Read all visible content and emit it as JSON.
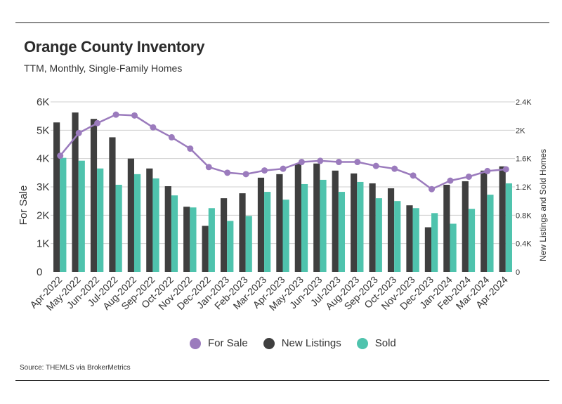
{
  "header": {
    "title": "Orange County Inventory",
    "subtitle": "TTM, Monthly, Single-Family Homes"
  },
  "source": "Source:  THEMLS via BrokerMetrics",
  "colors": {
    "for_sale": "#9b7bbd",
    "new_listings": "#3f3f3f",
    "sold": "#4fc3ad",
    "grid": "#cfcfcf",
    "rule": "#222222"
  },
  "chart_data": {
    "type": "bar",
    "title": "Orange County Inventory",
    "subtitle": "TTM, Monthly, Single-Family Homes",
    "categories": [
      "Apr-2022",
      "May-2022",
      "Jun-2022",
      "Jul-2022",
      "Aug-2022",
      "Sep-2022",
      "Oct-2022",
      "Nov-2022",
      "Dec-2022",
      "Jan-2023",
      "Feb-2023",
      "Mar-2023",
      "Apr-2023",
      "May-2023",
      "Jun-2023",
      "Jul-2023",
      "Aug-2023",
      "Sep-2023",
      "Oct-2023",
      "Nov-2023",
      "Dec-2023",
      "Jan-2024",
      "Feb-2024",
      "Mar-2024",
      "Apr-2024"
    ],
    "y_left": {
      "label": "For Sale",
      "ticks": [
        "0",
        "1K",
        "2K",
        "3K",
        "4K",
        "5K",
        "6K"
      ],
      "ylim": [
        0,
        6000
      ]
    },
    "y_right": {
      "label": "New Listings and Sold Homes",
      "ticks": [
        "0",
        "0.4K",
        "0.8K",
        "1.2K",
        "1.6K",
        "2K",
        "2.4K"
      ],
      "ylim": [
        0,
        2400
      ]
    },
    "grid": true,
    "legend_position": "bottom",
    "series": [
      {
        "name": "For Sale",
        "type": "line",
        "axis": "left",
        "color": "#9b7bbd",
        "values": [
          4100,
          4900,
          5250,
          5550,
          5520,
          5100,
          4750,
          4350,
          3700,
          3500,
          3450,
          3580,
          3640,
          3880,
          3920,
          3880,
          3880,
          3740,
          3640,
          3400,
          2920,
          3220,
          3360,
          3560,
          3620
        ]
      },
      {
        "name": "New Listings",
        "type": "bar",
        "axis": "right",
        "color": "#3f3f3f",
        "values": [
          2110,
          2250,
          2160,
          1900,
          1600,
          1460,
          1210,
          920,
          650,
          1040,
          1110,
          1330,
          1380,
          1530,
          1530,
          1430,
          1390,
          1250,
          1180,
          940,
          630,
          1230,
          1280,
          1430,
          1490
        ]
      },
      {
        "name": "Sold",
        "type": "bar",
        "axis": "right",
        "color": "#4fc3ad",
        "values": [
          1610,
          1570,
          1460,
          1230,
          1380,
          1320,
          1080,
          910,
          900,
          720,
          790,
          1130,
          1020,
          1240,
          1300,
          1130,
          1270,
          1040,
          1000,
          900,
          830,
          680,
          890,
          1090,
          1250
        ]
      }
    ]
  }
}
